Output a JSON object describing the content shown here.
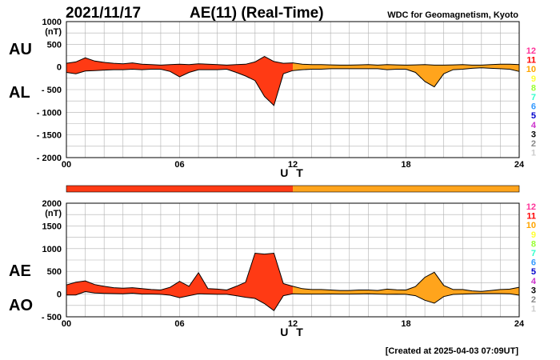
{
  "header": {
    "date": "2021/11/17",
    "title": "AE(11) (Real-Time)",
    "source": "WDC for Geomagnetism, Kyoto"
  },
  "footer": {
    "created": "[Created at 2025-04-03 07:09UT]"
  },
  "legend": {
    "levels": [
      "12",
      "11",
      "10",
      "9",
      "8",
      "7",
      "6",
      "5",
      "4",
      "3",
      "2",
      "1"
    ],
    "colors": [
      "#ff3399",
      "#ff0000",
      "#ffa500",
      "#ffff33",
      "#99ff33",
      "#33ffcc",
      "#3399ff",
      "#0000cc",
      "#cc33cc",
      "#000000",
      "#888888",
      "#cccccc"
    ]
  },
  "colors": {
    "early": "#ff3a14",
    "late": "#ffa41c"
  },
  "chart_data": [
    {
      "type": "area",
      "series": [
        {
          "name": "AU"
        },
        {
          "name": "AL"
        }
      ],
      "y_series_labels": [
        "AU",
        "AL"
      ],
      "unit": "(nT)",
      "xlabel": "U T",
      "xticks": [
        "00",
        "06",
        "12",
        "18",
        "24"
      ],
      "xlim": [
        0,
        24
      ],
      "ylim": [
        -2000,
        1000
      ],
      "yticks": [
        "1000",
        "500",
        "0",
        "- 500",
        "- 1000",
        "- 1500",
        "- 2000"
      ],
      "ytick_values": [
        1000,
        500,
        0,
        -500,
        -1000,
        -1500,
        -2000
      ],
      "x": [
        0,
        0.5,
        1,
        1.5,
        2,
        2.5,
        3,
        3.5,
        4,
        4.5,
        5,
        5.5,
        6,
        6.5,
        7,
        7.5,
        8,
        8.5,
        9,
        9.5,
        10,
        10.5,
        11,
        11.5,
        12,
        12.5,
        13,
        13.5,
        14,
        14.5,
        15,
        15.5,
        16,
        16.5,
        17,
        17.5,
        18,
        18.5,
        19,
        19.5,
        20,
        20.5,
        21,
        21.5,
        22,
        22.5,
        23,
        23.5,
        24
      ],
      "upper": [
        80,
        110,
        200,
        130,
        100,
        80,
        70,
        90,
        60,
        50,
        40,
        50,
        60,
        50,
        70,
        60,
        50,
        40,
        50,
        60,
        110,
        230,
        120,
        80,
        90,
        60,
        50,
        50,
        45,
        40,
        40,
        45,
        50,
        40,
        50,
        45,
        40,
        45,
        50,
        40,
        40,
        45,
        50,
        40,
        40,
        50,
        60,
        60,
        50
      ],
      "lower": [
        -120,
        -150,
        -90,
        -80,
        -70,
        -60,
        -60,
        -50,
        -60,
        -50,
        -50,
        -100,
        -220,
        -120,
        -60,
        -60,
        -60,
        -50,
        -120,
        -200,
        -300,
        -650,
        -850,
        -150,
        -80,
        -60,
        -50,
        -50,
        -40,
        -40,
        -40,
        -40,
        -40,
        -40,
        -60,
        -50,
        -50,
        -120,
        -320,
        -440,
        -150,
        -60,
        -50,
        -30,
        -20,
        -30,
        -40,
        -50,
        -100
      ]
    },
    {
      "type": "area",
      "series": [
        {
          "name": "AE"
        },
        {
          "name": "AO"
        }
      ],
      "y_series_labels": [
        "AE",
        "AO"
      ],
      "unit": "(nT)",
      "xlabel": "U T",
      "xticks": [
        "00",
        "06",
        "12",
        "18",
        "24"
      ],
      "xlim": [
        0,
        24
      ],
      "ylim": [
        -500,
        2000
      ],
      "yticks": [
        "2000",
        "1500",
        "1000",
        "500",
        "0",
        "- 500"
      ],
      "ytick_values": [
        2000,
        1500,
        1000,
        500,
        0,
        -500
      ],
      "x": [
        0,
        0.5,
        1,
        1.5,
        2,
        2.5,
        3,
        3.5,
        4,
        4.5,
        5,
        5.5,
        6,
        6.5,
        7,
        7.5,
        8,
        8.5,
        9,
        9.5,
        10,
        10.5,
        11,
        11.5,
        12,
        12.5,
        13,
        13.5,
        14,
        14.5,
        15,
        15.5,
        16,
        16.5,
        17,
        17.5,
        18,
        18.5,
        19,
        19.5,
        20,
        20.5,
        21,
        21.5,
        22,
        22.5,
        23,
        23.5,
        24
      ],
      "upper": [
        200,
        260,
        290,
        210,
        170,
        140,
        130,
        140,
        120,
        100,
        90,
        150,
        280,
        170,
        470,
        120,
        110,
        90,
        170,
        260,
        900,
        880,
        900,
        230,
        170,
        120,
        100,
        100,
        90,
        80,
        80,
        90,
        90,
        80,
        110,
        95,
        90,
        165,
        370,
        480,
        190,
        100,
        100,
        70,
        60,
        80,
        100,
        110,
        150
      ],
      "lower": [
        -20,
        -20,
        55,
        25,
        15,
        10,
        5,
        20,
        0,
        0,
        -5,
        -25,
        -80,
        -35,
        5,
        0,
        -5,
        -5,
        -35,
        -70,
        -95,
        -210,
        -365,
        -35,
        5,
        0,
        0,
        0,
        2,
        0,
        0,
        2,
        5,
        0,
        -5,
        -2,
        -5,
        -35,
        -135,
        -200,
        -55,
        -7,
        0,
        5,
        10,
        10,
        10,
        5,
        -25
      ]
    }
  ]
}
